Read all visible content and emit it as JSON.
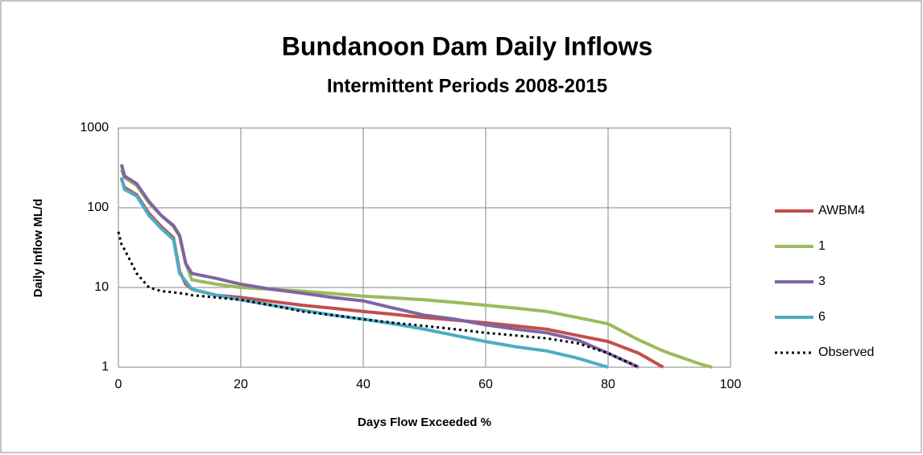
{
  "chart_data": {
    "type": "line",
    "title": "Bundanoon Dam Daily Inflows",
    "subtitle": "Intermittent Periods 2008-2015",
    "x_label": "Days Flow Exceeded %",
    "y_label": "Daily Inflow ML/d",
    "log_y": true,
    "grid": true,
    "legend": "right",
    "x": [
      0,
      0.5,
      1,
      3,
      5,
      7,
      9,
      10,
      11,
      12,
      16,
      20,
      25,
      30,
      35,
      40,
      45,
      50,
      55,
      60,
      65,
      70,
      75,
      80,
      85,
      89,
      90,
      95,
      97
    ],
    "xlim": [
      0,
      100
    ],
    "xticks": [
      0,
      20,
      40,
      60,
      80,
      100
    ],
    "ylim": [
      1,
      1000
    ],
    "yticks": [
      1,
      10,
      100,
      1000
    ],
    "series": [
      {
        "name": "AWBM4",
        "color": "#c0504d",
        "dash": false,
        "values": [
          null,
          230,
          180,
          145,
          85,
          58,
          42,
          16,
          11,
          9.5,
          8,
          7.5,
          6.7,
          6,
          5.5,
          5,
          4.6,
          4.2,
          3.9,
          3.6,
          3.3,
          3,
          2.5,
          2.1,
          1.5,
          1,
          null,
          null,
          null
        ]
      },
      {
        "name": "1",
        "color": "#9bbb59",
        "dash": false,
        "values": [
          null,
          300,
          240,
          190,
          115,
          80,
          58,
          44,
          20,
          12.5,
          11,
          10,
          9.5,
          9,
          8.4,
          7.8,
          7.4,
          7,
          6.5,
          6,
          5.5,
          5,
          4.2,
          3.5,
          2.2,
          1.6,
          1.5,
          1.1,
          1
        ]
      },
      {
        "name": "3",
        "color": "#8064a2",
        "dash": false,
        "values": [
          null,
          350,
          250,
          200,
          120,
          80,
          60,
          45,
          20,
          15,
          13,
          11,
          9.5,
          8.5,
          7.5,
          6.8,
          5.5,
          4.5,
          4,
          3.4,
          3,
          2.7,
          2.2,
          1.5,
          1,
          null,
          null,
          null,
          null
        ]
      },
      {
        "name": "6",
        "color": "#4bacc6",
        "dash": false,
        "values": [
          null,
          240,
          170,
          140,
          80,
          55,
          40,
          15,
          12,
          9.5,
          8,
          7,
          6,
          5.2,
          4.5,
          4,
          3.5,
          3,
          2.5,
          2.1,
          1.8,
          1.6,
          1.3,
          1,
          null,
          null,
          null,
          null,
          null
        ]
      },
      {
        "name": "Observed",
        "color": "#000000",
        "dash": true,
        "values": [
          50,
          35,
          30,
          15,
          10,
          9,
          8.7,
          8.5,
          8.3,
          8,
          7.5,
          7,
          6,
          5,
          4.5,
          4,
          3.6,
          3.3,
          3,
          2.7,
          2.5,
          2.3,
          2,
          1.5,
          1,
          null,
          null,
          null,
          null
        ]
      }
    ]
  }
}
